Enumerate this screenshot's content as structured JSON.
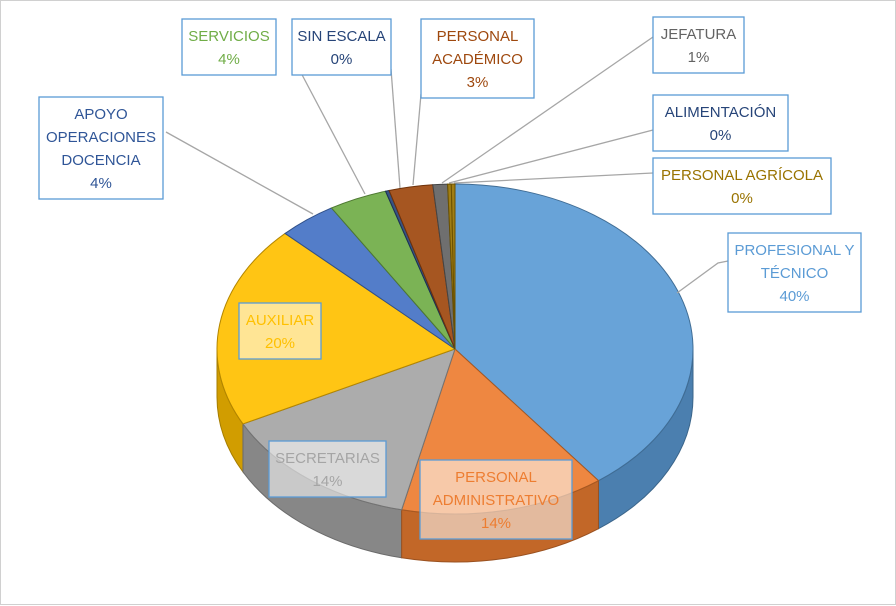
{
  "chart_data": {
    "type": "pie",
    "title": "",
    "categories": [
      "PROFESIONAL Y TÉCNICO",
      "PERSONAL ADMINISTRATIVO",
      "SECRETARIAS",
      "AUXILIAR",
      "APOYO OPERACIONES DOCENCIA",
      "SERVICIOS",
      "SIN ESCALA",
      "PERSONAL ACADÉMICO",
      "JEFATURA",
      "ALIMENTACIÓN",
      "PERSONAL AGRÍCOLA"
    ],
    "values": [
      40,
      14,
      14,
      20,
      4,
      4,
      0,
      3,
      1,
      0,
      0
    ],
    "labels": [
      "40%",
      "14%",
      "14%",
      "20%",
      "4%",
      "4%",
      "0%",
      "3%",
      "1%",
      "0%",
      "0%"
    ],
    "colors": [
      "#5b9bd5",
      "#ed7d31",
      "#a5a5a5",
      "#ffc000",
      "#4472c4",
      "#70ad47",
      "#264478",
      "#9e480e",
      "#636363",
      "#997300",
      "#997300"
    ],
    "label_colors": [
      "#5b9bd5",
      "#ed7d31",
      "#a5a5a5",
      "#ffc000",
      "#2f5597",
      "#70ad47",
      "#264478",
      "#9e480e",
      "#636363",
      "#264478",
      "#997300"
    ],
    "legend": "none"
  }
}
